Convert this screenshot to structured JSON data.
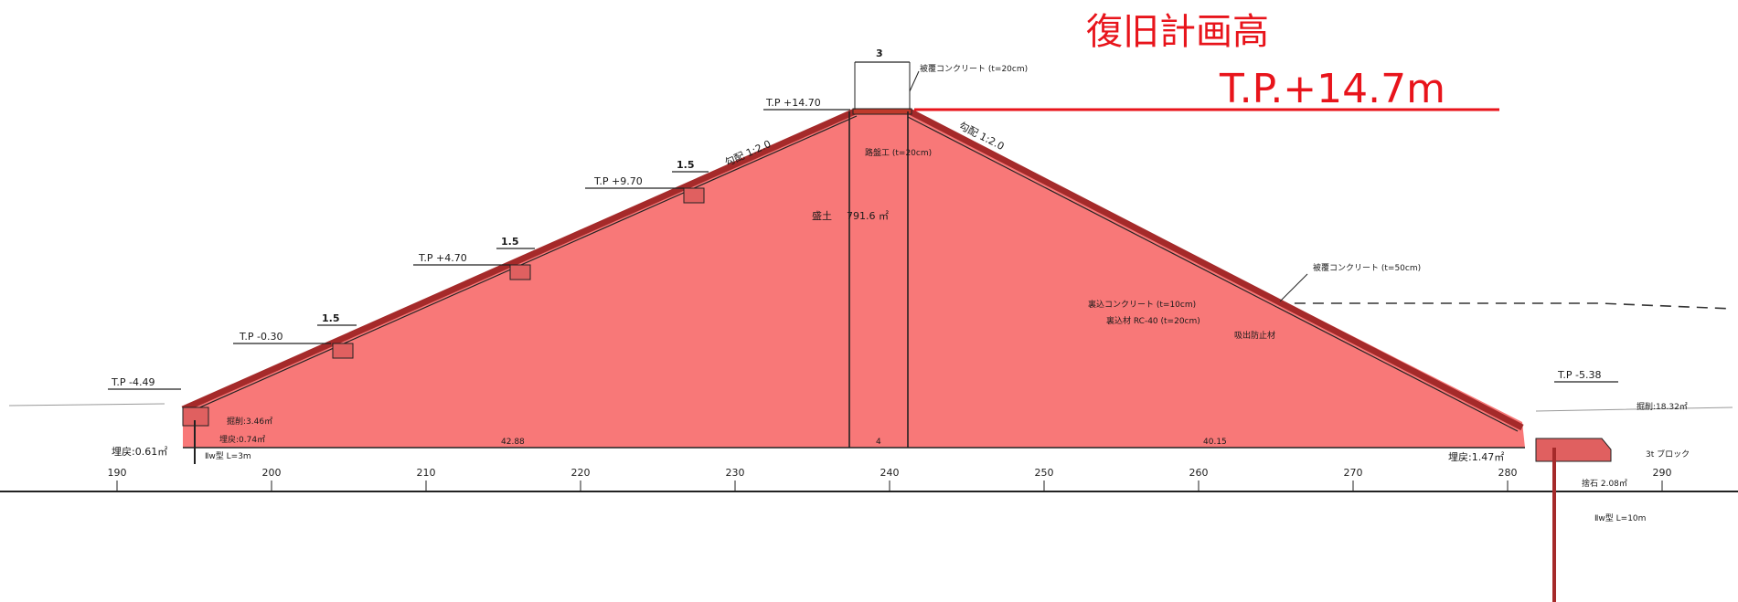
{
  "overlay": {
    "title": "復旧計画高",
    "height_label": "T.P.+14.7m"
  },
  "crest": {
    "width": "3",
    "level": "T.P +14.70",
    "surface_label": "被覆コンクリート (t=20cm)",
    "road_label": "路盤工 (t=20cm)"
  },
  "slopes": {
    "left": "勾配 1:2.0",
    "right": "勾配 1:2.0"
  },
  "berms": [
    {
      "level": "T.P +9.70",
      "width": "1.5"
    },
    {
      "level": "T.P +4.70",
      "width": "1.5"
    },
    {
      "level": "T.P -0.30",
      "width": "1.5"
    }
  ],
  "fill": {
    "label": "盛土",
    "area": "791.6 ㎡"
  },
  "left_toe": {
    "level": "T.P -4.49",
    "excavation": "掘削:3.46㎡",
    "backfill_inner": "埋戻:0.74㎡",
    "backfill_outer": "埋戻:0.61㎡",
    "pile": "Ⅱw型 L=3m"
  },
  "right_toe": {
    "level": "T.P -5.38",
    "excavation": "掘削:18.32㎡",
    "backfill": "埋戻:1.47㎡",
    "block": "3t ブロック",
    "rubble": "捨石 2.08㎡",
    "pile": "Ⅱw型 L=10m"
  },
  "right_slope_labels": {
    "cover": "被覆コンクリート (t=50cm)",
    "back_concrete": "裏込コンクリート (t=10cm)",
    "back_material": "裏込材 RC-40 (t=20cm)",
    "filter": "吸出防止材"
  },
  "base_dims": [
    "42.88",
    "4",
    "40.15"
  ],
  "axis_ticks": [
    "190",
    "200",
    "210",
    "220",
    "230",
    "240",
    "250",
    "260",
    "270",
    "280",
    "290"
  ],
  "colors": {
    "fill_red": "#f87878",
    "accent_red": "#e8141b",
    "line": "#1a1a1a"
  }
}
